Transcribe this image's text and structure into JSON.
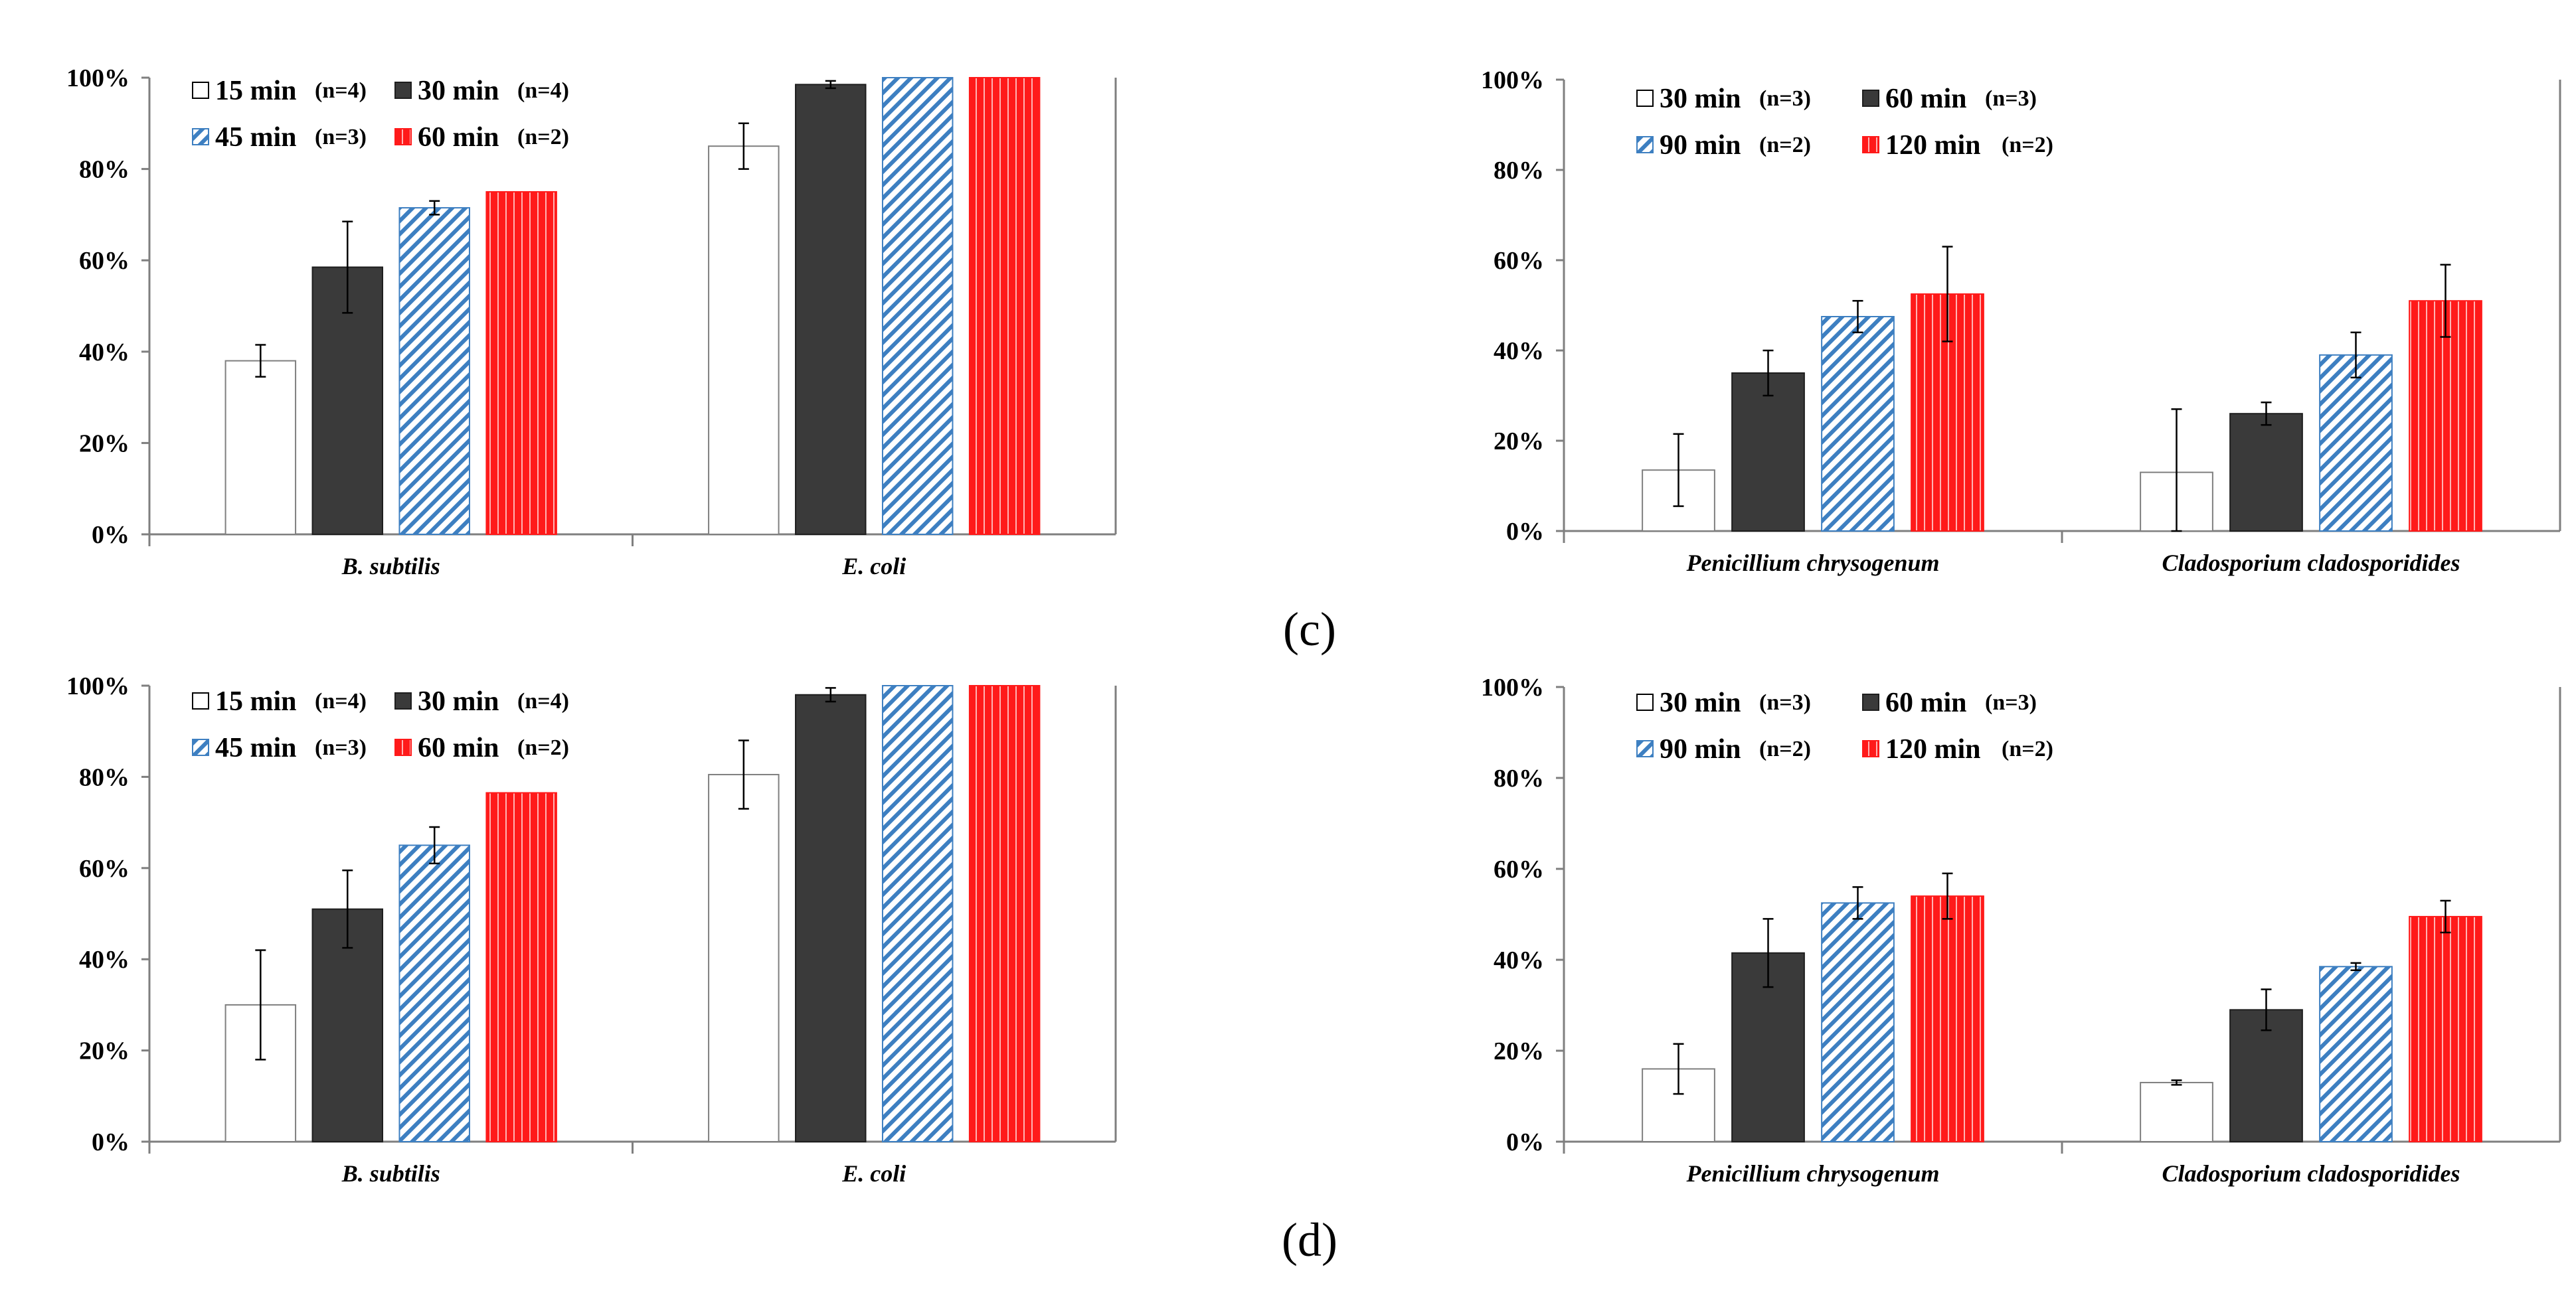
{
  "figure": {
    "panel_labels": [
      "(c)",
      "(d)"
    ]
  },
  "colors": {
    "white": "#ffffff",
    "white_edge": "#7f7f7f",
    "dark": "#3a3a3a",
    "dark_edge": "#1e1e1e",
    "blue_hatch": "#3d7fc1",
    "red": "#ff1a1a",
    "red_stripe": "#ffffff",
    "axis": "#7f7f7f"
  },
  "chart_data": [
    {
      "type": "bar",
      "panel": "(c)",
      "position": "left",
      "title": "",
      "xlabel": "",
      "ylabel": "",
      "ylim": [
        0,
        100
      ],
      "yticks": [
        "0%",
        "20%",
        "40%",
        "60%",
        "80%",
        "100%"
      ],
      "categories": [
        "B. subtilis",
        "E. coli"
      ],
      "series": [
        {
          "name": "15 min",
          "n": "(n=4)",
          "style": "white",
          "values": [
            38,
            85
          ],
          "errors": [
            3.5,
            5
          ]
        },
        {
          "name": "30 min",
          "n": "(n=4)",
          "style": "dark",
          "values": [
            58.5,
            98.5
          ],
          "errors": [
            10,
            0.8
          ]
        },
        {
          "name": "45 min",
          "n": "(n=3)",
          "style": "blue",
          "values": [
            71.5,
            100
          ],
          "errors": [
            1.5,
            0
          ]
        },
        {
          "name": "60 min",
          "n": "(n=2)",
          "style": "red",
          "values": [
            75,
            100
          ],
          "errors": [
            0,
            0
          ]
        }
      ]
    },
    {
      "type": "bar",
      "panel": "(c)",
      "position": "right",
      "title": "",
      "xlabel": "",
      "ylabel": "",
      "ylim": [
        0,
        100
      ],
      "yticks": [
        "0%",
        "20%",
        "40%",
        "60%",
        "80%",
        "100%"
      ],
      "categories": [
        "Penicillium chrysogenum",
        "Cladosporium cladosporidides"
      ],
      "series": [
        {
          "name": "30 min",
          "n": "(n=3)",
          "style": "white",
          "values": [
            13.5,
            13
          ],
          "errors": [
            8,
            14
          ]
        },
        {
          "name": "60 min",
          "n": "(n=3)",
          "style": "dark",
          "values": [
            35,
            26
          ],
          "errors": [
            5,
            2.5
          ]
        },
        {
          "name": "90 min",
          "n": "(n=2)",
          "style": "blue",
          "values": [
            47.5,
            39
          ],
          "errors": [
            3.5,
            5
          ]
        },
        {
          "name": "120 min",
          "n": "(n=2)",
          "style": "red",
          "values": [
            52.5,
            51
          ],
          "errors": [
            10.5,
            8
          ]
        }
      ]
    },
    {
      "type": "bar",
      "panel": "(d)",
      "position": "left",
      "title": "",
      "xlabel": "",
      "ylabel": "",
      "ylim": [
        0,
        100
      ],
      "yticks": [
        "0%",
        "20%",
        "40%",
        "60%",
        "80%",
        "100%"
      ],
      "categories": [
        "B. subtilis",
        "E. coli"
      ],
      "series": [
        {
          "name": "15 min",
          "n": "(n=4)",
          "style": "white",
          "values": [
            30,
            80.5
          ],
          "errors": [
            12,
            7.5
          ]
        },
        {
          "name": "30 min",
          "n": "(n=4)",
          "style": "dark",
          "values": [
            51,
            98
          ],
          "errors": [
            8.5,
            1.5
          ]
        },
        {
          "name": "45 min",
          "n": "(n=3)",
          "style": "blue",
          "values": [
            65,
            100
          ],
          "errors": [
            4,
            0
          ]
        },
        {
          "name": "60 min",
          "n": "(n=2)",
          "style": "red",
          "values": [
            76.5,
            100
          ],
          "errors": [
            0,
            0
          ]
        }
      ]
    },
    {
      "type": "bar",
      "panel": "(d)",
      "position": "right",
      "title": "",
      "xlabel": "",
      "ylabel": "",
      "ylim": [
        0,
        100
      ],
      "yticks": [
        "0%",
        "20%",
        "40%",
        "60%",
        "80%",
        "100%"
      ],
      "categories": [
        "Penicillium chrysogenum",
        "Cladosporium cladosporidides"
      ],
      "series": [
        {
          "name": "30 min",
          "n": "(n=3)",
          "style": "white",
          "values": [
            16,
            13
          ],
          "errors": [
            5.5,
            0.5
          ]
        },
        {
          "name": "60 min",
          "n": "(n=3)",
          "style": "dark",
          "values": [
            41.5,
            29
          ],
          "errors": [
            7.5,
            4.5
          ]
        },
        {
          "name": "90 min",
          "n": "(n=2)",
          "style": "blue",
          "values": [
            52.5,
            38.5
          ],
          "errors": [
            3.5,
            0.8
          ]
        },
        {
          "name": "120 min",
          "n": "(n=2)",
          "style": "red",
          "values": [
            54,
            49.5
          ],
          "errors": [
            5,
            3.5
          ]
        }
      ]
    }
  ]
}
